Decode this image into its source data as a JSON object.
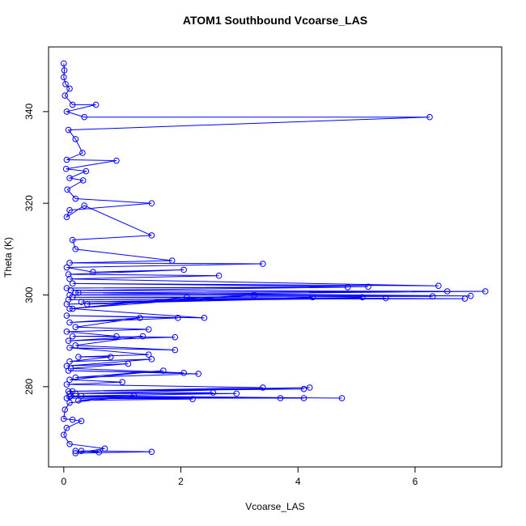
{
  "chart_data": {
    "type": "line",
    "title": "ATOM1 Southbound Vcoarse_LAS",
    "x_label": "Vcoarse_LAS",
    "y_label": "Theta (K)",
    "xlim": [
      -0.26,
      7.48
    ],
    "ylim": [
      262.5,
      354.1
    ],
    "xticks": [
      0,
      2,
      4,
      6
    ],
    "yticks": [
      280,
      300,
      320,
      340
    ],
    "series": [
      {
        "color": "#0000ff",
        "marker": "circle",
        "x": [
          0.0,
          0.01,
          0.0,
          0.03,
          0.1,
          0.02,
          0.15,
          0.55,
          0.05,
          0.35,
          6.25,
          0.08,
          0.2,
          0.32,
          0.05,
          0.9,
          0.04,
          0.38,
          0.1,
          0.33,
          0.06,
          0.2,
          1.5,
          0.1,
          0.05,
          0.35,
          1.5,
          0.15,
          0.2,
          1.85,
          0.1,
          3.4,
          0.05,
          0.5,
          2.05,
          0.08,
          2.65,
          0.1,
          6.4,
          0.15,
          5.2,
          0.05,
          4.85,
          0.12,
          6.55,
          0.2,
          7.2,
          0.1,
          6.95,
          0.25,
          6.3,
          0.15,
          6.85,
          0.08,
          5.5,
          0.3,
          5.1,
          0.05,
          4.25,
          0.4,
          3.25,
          0.1,
          2.1,
          0.15,
          2.4,
          0.05,
          1.95,
          0.1,
          1.3,
          0.2,
          1.45,
          0.05,
          0.9,
          0.15,
          1.9,
          0.08,
          1.35,
          0.2,
          1.9,
          0.1,
          1.45,
          0.25,
          0.8,
          0.1,
          1.5,
          0.05,
          1.1,
          0.12,
          2.05,
          0.08,
          2.3,
          0.2,
          1.7,
          0.1,
          1.0,
          0.05,
          3.4,
          0.15,
          4.1,
          0.08,
          4.2,
          0.2,
          2.55,
          0.1,
          2.95,
          0.3,
          4.75,
          0.12,
          4.1,
          0.1,
          3.7,
          0.05,
          2.2,
          0.25,
          1.2,
          0.1,
          0.02,
          0.0,
          0.15,
          0.3,
          0.05,
          0.0,
          0.1,
          0.7,
          0.2,
          1.5,
          0.3,
          0.6,
          0.2
        ],
        "values": [
          350.5,
          349,
          347.5,
          346,
          345,
          343.5,
          341.5,
          341.5,
          340,
          338.8,
          338.8,
          336,
          334,
          331,
          329.5,
          329.3,
          327.5,
          327,
          325.5,
          325,
          323,
          321,
          320,
          318.5,
          317,
          319.5,
          313,
          312,
          310,
          307.5,
          307,
          306.8,
          306,
          305,
          305.5,
          304.5,
          304.2,
          303.5,
          302,
          302.5,
          301.8,
          301.5,
          301.7,
          301,
          300.8,
          300.5,
          300.8,
          300,
          299.8,
          300.5,
          299.7,
          299.5,
          299.2,
          299,
          299.3,
          298.5,
          299.5,
          298,
          299.5,
          298,
          300,
          297,
          299.5,
          297,
          295,
          295.5,
          295,
          294,
          295,
          293,
          292.5,
          292,
          291,
          291,
          290.8,
          290,
          291,
          289,
          288,
          288.5,
          287,
          286.5,
          286.5,
          285.5,
          286,
          284.5,
          285,
          284,
          283,
          283.5,
          282.8,
          282,
          283.5,
          281.5,
          281,
          280.5,
          279.8,
          279,
          279.5,
          279,
          279.8,
          278.5,
          278.7,
          278.5,
          278.5,
          278,
          277.5,
          278,
          277.5,
          277.8,
          277.5,
          277.5,
          277.3,
          277,
          278,
          276.5,
          275,
          273,
          272.8,
          272.5,
          271,
          269.5,
          267.5,
          266.5,
          265.5,
          265.8,
          266,
          265.7,
          266
        ]
      }
    ]
  }
}
